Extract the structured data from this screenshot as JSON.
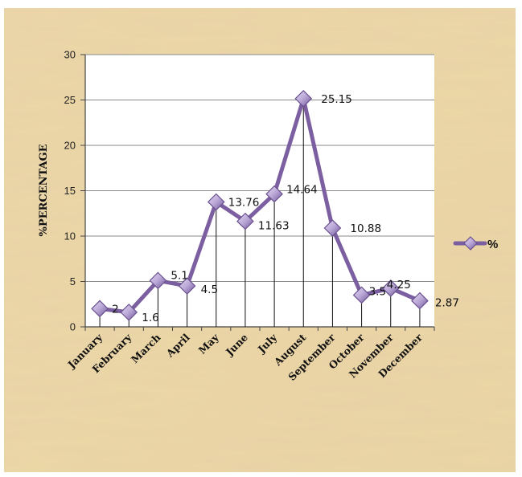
{
  "chart_data": {
    "type": "line",
    "categories": [
      "January",
      "February",
      "March",
      "April",
      "May",
      "June",
      "July",
      "August",
      "September",
      "October",
      "November",
      "December"
    ],
    "series": [
      {
        "name": "%",
        "values": [
          2,
          1.6,
          5.1,
          4.5,
          13.76,
          11.63,
          14.64,
          25.15,
          10.88,
          3.5,
          4.25,
          2.87
        ],
        "data_labels": [
          "2",
          "1.6",
          "5.1",
          "4.5",
          "13.76",
          "11.63",
          "14.64",
          "25.15",
          "10.88",
          "3.5",
          "4.25",
          "2.87"
        ],
        "color": "#7b5fa0",
        "marker": "diamond",
        "drop_lines": true
      }
    ],
    "ylabel": "%PERCENTAGE",
    "ylim": [
      0,
      30
    ],
    "yticks": [
      0,
      5,
      10,
      15,
      20,
      25,
      30
    ],
    "ytick_labels": [
      "0",
      "5",
      "10",
      "15",
      "20",
      "25",
      "30"
    ],
    "grid": "horizontal",
    "legend_position": "right",
    "background": "parchment"
  }
}
